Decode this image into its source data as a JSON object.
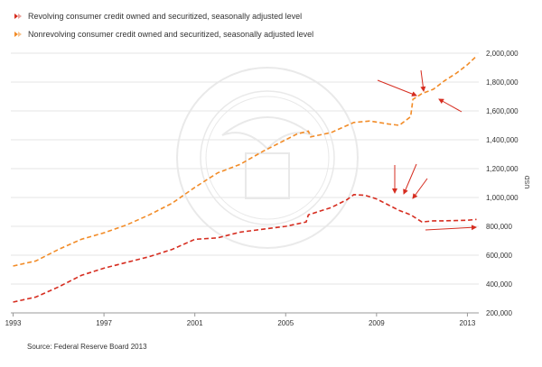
{
  "chart_data": {
    "type": "line",
    "legend": [
      {
        "name": "Revolving consumer credit owned and securitized, seasonally adjusted level",
        "color": "#d62d20"
      },
      {
        "name": "Nonrevolving consumer credit owned and securitized, seasonally adjusted level",
        "color": "#f28c28"
      }
    ],
    "ylabel": "USD",
    "yticks": [
      "200,000",
      "400,000",
      "600,000",
      "800,000",
      "1,000,000",
      "1,200,000",
      "1,400,000",
      "1,600,000",
      "1,800,000",
      "2,000,000"
    ],
    "ylim": [
      200000,
      2000000
    ],
    "xticks": [
      "1993",
      "1997",
      "2001",
      "2005",
      "2009",
      "2013"
    ],
    "xlim": [
      1992.9,
      2013.5
    ],
    "line_style": "dashed",
    "grid": "horizontal",
    "legend_position": "top-left",
    "source": "Source: Federal Reserve Board 2013",
    "series": [
      {
        "name": "Revolving consumer credit owned and securitized, seasonally adjusted level",
        "color": "#d62d20",
        "x": [
          1993,
          1994,
          1995,
          1996,
          1997,
          1998,
          1999,
          2000,
          2001,
          2002,
          2003,
          2004,
          2005,
          2005.9,
          2006,
          2007,
          2007.7,
          2008.0,
          2008.5,
          2009.0,
          2009.5,
          2010.0,
          2010.5,
          2011.0,
          2011.5,
          2012.0,
          2012.5,
          2013.0,
          2013.4
        ],
        "y": [
          275000,
          310000,
          380000,
          460000,
          510000,
          550000,
          590000,
          640000,
          710000,
          720000,
          760000,
          780000,
          800000,
          830000,
          880000,
          930000,
          985000,
          1020000,
          1015000,
          990000,
          950000,
          910000,
          880000,
          830000,
          838000,
          838000,
          840000,
          842000,
          848000
        ]
      },
      {
        "name": "Nonrevolving consumer credit owned and securitized, seasonally adjusted level",
        "color": "#f28c28",
        "x": [
          1993,
          1994,
          1995,
          1996,
          1997,
          1998,
          1999,
          2000,
          2001,
          2002,
          2003,
          2004,
          2005,
          2005.5,
          2006.0,
          2006.1,
          2007,
          2008,
          2008.7,
          2009.5,
          2010.0,
          2010.5,
          2010.6,
          2011.0,
          2011.5,
          2012.0,
          2012.5,
          2013.0,
          2013.4
        ],
        "y": [
          525000,
          560000,
          640000,
          710000,
          755000,
          810000,
          880000,
          960000,
          1070000,
          1170000,
          1230000,
          1320000,
          1400000,
          1440000,
          1460000,
          1420000,
          1450000,
          1520000,
          1530000,
          1510000,
          1500000,
          1560000,
          1680000,
          1720000,
          1750000,
          1810000,
          1860000,
          1920000,
          1980000
        ]
      }
    ]
  }
}
